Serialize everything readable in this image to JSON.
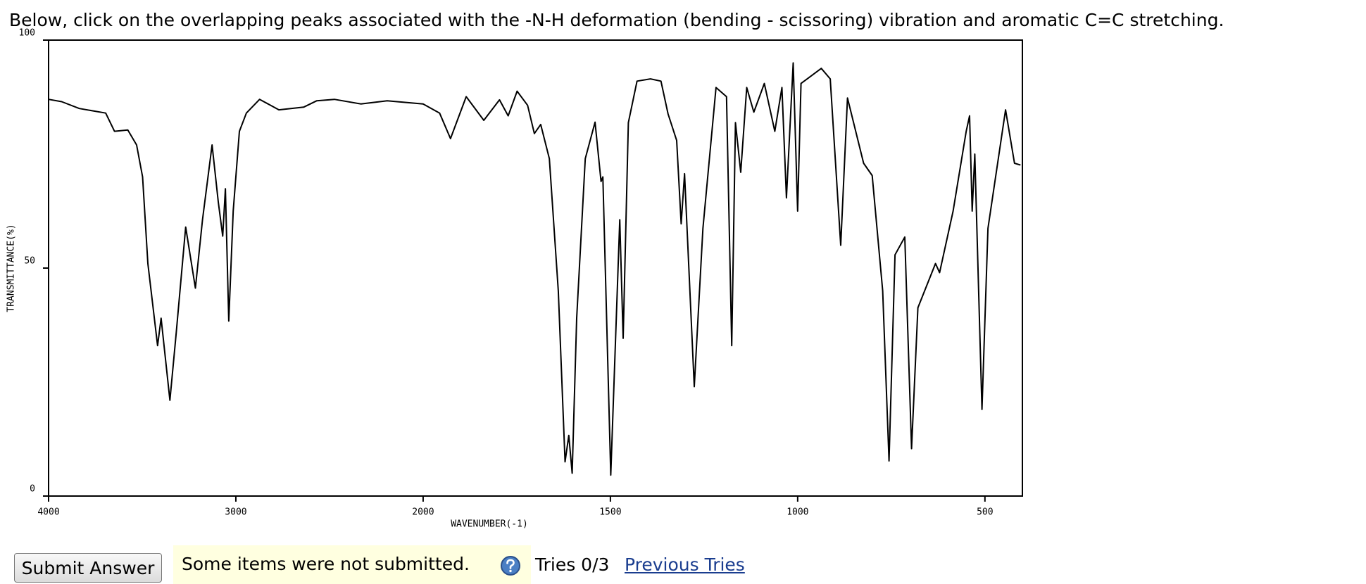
{
  "question": "Below, click on the overlapping peaks associated with the -N-H deformation (bending - scissoring) vibration and aromatic C=C stretching.",
  "chart_data": {
    "type": "line",
    "x_label": "WAVENUMBER(-1)",
    "y_label": "TRANSMITTANCE(%)",
    "xlim": [
      4000,
      400
    ],
    "xticks": [
      4000,
      3000,
      2000,
      1500,
      1000,
      500
    ],
    "ylim": [
      0,
      100
    ],
    "yticks": [
      0,
      50,
      100
    ],
    "grid": false,
    "x": [
      4000,
      3930,
      3836,
      3695,
      3648,
      3577,
      3530,
      3498,
      3470,
      3418,
      3399,
      3352,
      3319,
      3268,
      3216,
      3178,
      3127,
      3094,
      3070,
      3056,
      3038,
      3014,
      2981,
      2944,
      2873,
      2770,
      2638,
      2568,
      2474,
      2333,
      2192,
      2000,
      1956,
      1927,
      1885,
      1838,
      1796,
      1773,
      1749,
      1721,
      1703,
      1686,
      1663,
      1639,
      1621,
      1611,
      1602,
      1590,
      1567,
      1541,
      1525,
      1520,
      1499,
      1475,
      1466,
      1452,
      1429,
      1393,
      1365,
      1346,
      1323,
      1311,
      1302,
      1276,
      1253,
      1218,
      1190,
      1176,
      1166,
      1152,
      1136,
      1117,
      1089,
      1061,
      1042,
      1030,
      1012,
      1000,
      991,
      937,
      913,
      885,
      867,
      824,
      801,
      773,
      756,
      740,
      714,
      696,
      679,
      632,
      621,
      585,
      550,
      541,
      534,
      527,
      508,
      492,
      445,
      421,
      405
    ],
    "series": [
      {
        "name": "spectrum",
        "color": "#000000",
        "values": [
          87,
          86.5,
          85,
          84,
          80,
          80.3,
          77,
          70,
          51,
          33,
          39,
          21,
          35.5,
          59,
          45.6,
          60.6,
          77,
          64.5,
          57,
          67.4,
          38.4,
          62.5,
          80,
          84,
          87,
          84.7,
          85.3,
          86.7,
          87,
          86,
          86.7,
          86,
          84,
          78.4,
          87.6,
          82.4,
          86.9,
          83.4,
          88.8,
          85.7,
          79.5,
          81.5,
          74,
          45,
          7.5,
          13.3,
          5,
          39,
          74,
          82,
          69,
          70,
          4.6,
          60.6,
          34.6,
          81.9,
          91,
          91.5,
          91,
          83.8,
          78,
          59.7,
          70.7,
          24,
          58.7,
          89.6,
          87.6,
          33,
          81.9,
          71,
          89.6,
          84.2,
          90.5,
          80,
          89.6,
          65.4,
          95,
          62.5,
          90.5,
          93.8,
          91.5,
          55,
          87.3,
          73,
          70.3,
          45,
          7.7,
          52.9,
          56.8,
          10.4,
          41.3,
          51,
          49,
          62.5,
          80,
          83.4,
          62.5,
          75,
          19,
          58.7,
          84.7,
          73,
          72.6
        ]
      }
    ]
  },
  "submit_button": "Submit Answer",
  "status_message": "Some items were not submitted.",
  "tries": "Tries 0/3",
  "previous_tries_link": "Previous Tries"
}
